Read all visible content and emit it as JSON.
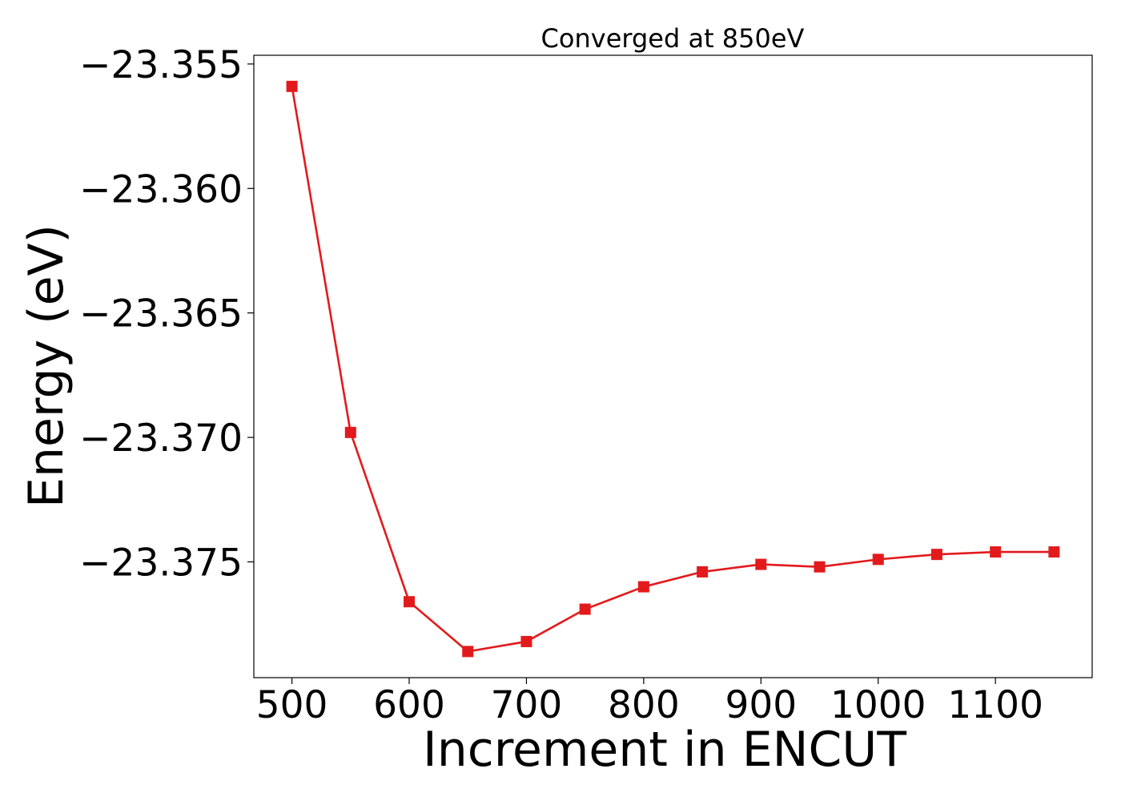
{
  "chart_data": {
    "type": "line",
    "title": "Converged at 850eV",
    "xlabel": "Increment in ENCUT",
    "ylabel": "Energy (eV)",
    "x": [
      500,
      550,
      600,
      650,
      700,
      750,
      800,
      850,
      900,
      950,
      1000,
      1050,
      1100,
      1150
    ],
    "series": [
      {
        "values": [
          -23.3559,
          -23.3698,
          -23.3766,
          -23.3786,
          -23.3782,
          -23.3769,
          -23.376,
          -23.3754,
          -23.3751,
          -23.3752,
          -23.3749,
          -23.3747,
          -23.3746,
          -23.3746
        ],
        "color": "#e31a1c",
        "marker": "square"
      }
    ],
    "xlim": [
      467.5,
      1182.5
    ],
    "ylim": [
      -23.37965,
      -23.35465
    ],
    "xticks": [
      500,
      600,
      700,
      800,
      900,
      1000,
      1100
    ],
    "xtick_labels": [
      "500",
      "600",
      "700",
      "800",
      "900",
      "1000",
      "1100"
    ],
    "yticks": [
      -23.355,
      -23.36,
      -23.365,
      -23.37,
      -23.375
    ],
    "ytick_labels": [
      "−23.355",
      "−23.360",
      "−23.365",
      "−23.370",
      "−23.375"
    ],
    "grid": false,
    "legend": "none"
  }
}
